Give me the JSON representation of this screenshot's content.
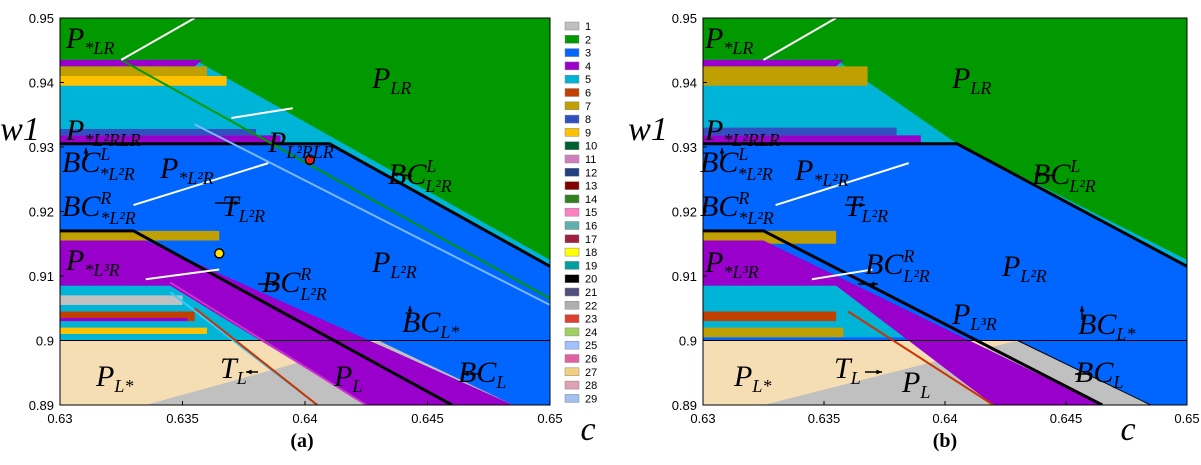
{
  "chart_data": [
    {
      "type": "region-map",
      "caption": "(a)",
      "xlabel": "c",
      "ylabel": "w1",
      "xlim": [
        0.63,
        0.65
      ],
      "ylim": [
        0.89,
        0.95
      ],
      "xticks": [
        0.63,
        0.635,
        0.64,
        0.645,
        0.65
      ],
      "yticks": [
        0.89,
        0.9,
        0.91,
        0.92,
        0.93,
        0.94,
        0.95
      ],
      "annotations": [
        {
          "main": "P",
          "sub": "*LR"
        },
        {
          "main": "P",
          "sub": "LR"
        },
        {
          "main": "P",
          "sub": "*L²RLR"
        },
        {
          "main": "P",
          "sub": "L²RLR"
        },
        {
          "main": "BC",
          "sup": "L",
          "sub": "*L²R"
        },
        {
          "main": "P",
          "sub": "*L²R"
        },
        {
          "main": "BC",
          "sup": "L",
          "sub": "L²R"
        },
        {
          "main": "T",
          "sub": "L²R"
        },
        {
          "main": "BC",
          "sup": "R",
          "sub": "*L²R"
        },
        {
          "main": "P",
          "sub": "*L³R"
        },
        {
          "main": "P",
          "sub": "L²R"
        },
        {
          "main": "BC",
          "sup": "R",
          "sub": "L²R"
        },
        {
          "main": "BC",
          "sub": "L*"
        },
        {
          "main": "P",
          "sub": "L*"
        },
        {
          "main": "T",
          "sub": "L"
        },
        {
          "main": "P",
          "sub": "L"
        },
        {
          "main": "BC",
          "sub": "L"
        }
      ],
      "legend": [
        {
          "name": "1",
          "color": "#c0c0c0"
        },
        {
          "name": "2",
          "color": "#009900"
        },
        {
          "name": "3",
          "color": "#0066ff"
        },
        {
          "name": "4",
          "color": "#9900cc"
        },
        {
          "name": "5",
          "color": "#00b4d8"
        },
        {
          "name": "6",
          "color": "#c04000"
        },
        {
          "name": "7",
          "color": "#c0a000"
        },
        {
          "name": "8",
          "color": "#3050c0"
        },
        {
          "name": "9",
          "color": "#ffc000"
        },
        {
          "name": "10",
          "color": "#006030"
        },
        {
          "name": "11",
          "color": "#d080c0"
        },
        {
          "name": "12",
          "color": "#204080"
        },
        {
          "name": "13",
          "color": "#800000"
        },
        {
          "name": "14",
          "color": "#308020"
        },
        {
          "name": "15",
          "color": "#ff80c0"
        },
        {
          "name": "16",
          "color": "#60b0b0"
        },
        {
          "name": "17",
          "color": "#a02040"
        },
        {
          "name": "18",
          "color": "#ffff00"
        },
        {
          "name": "19",
          "color": "#00a0a0"
        },
        {
          "name": "20",
          "color": "#000000"
        },
        {
          "name": "21",
          "color": "#505080"
        },
        {
          "name": "22",
          "color": "#b0b0b0"
        },
        {
          "name": "23",
          "color": "#e04030"
        },
        {
          "name": "24",
          "color": "#a0d060"
        },
        {
          "name": "25",
          "color": "#a0c0ff"
        },
        {
          "name": "26",
          "color": "#e060a0"
        },
        {
          "name": "27",
          "color": "#f0d080"
        },
        {
          "name": "28",
          "color": "#e0a0b0"
        },
        {
          "name": "29",
          "color": "#a0c0f0"
        }
      ]
    },
    {
      "type": "region-map",
      "caption": "(b)",
      "xlabel": "c",
      "ylabel": "w1",
      "xlim": [
        0.63,
        0.65
      ],
      "ylim": [
        0.89,
        0.95
      ],
      "xticks": [
        0.63,
        0.635,
        0.64,
        0.645,
        0.65
      ],
      "yticks": [
        0.89,
        0.9,
        0.91,
        0.92,
        0.93,
        0.94,
        0.95
      ],
      "annotations": [
        {
          "main": "P",
          "sub": "*LR"
        },
        {
          "main": "P",
          "sub": "LR"
        },
        {
          "main": "P",
          "sub": "*L²RLR"
        },
        {
          "main": "BC",
          "sup": "L",
          "sub": "*L²R"
        },
        {
          "main": "P",
          "sub": "*L²R"
        },
        {
          "main": "BC",
          "sup": "L",
          "sub": "L²R"
        },
        {
          "main": "T",
          "sub": "L²R"
        },
        {
          "main": "BC",
          "sup": "R",
          "sub": "*L²R"
        },
        {
          "main": "P",
          "sub": "*L³R"
        },
        {
          "main": "BC",
          "sup": "R",
          "sub": "L²R"
        },
        {
          "main": "P",
          "sub": "L²R"
        },
        {
          "main": "P",
          "sub": "L³R"
        },
        {
          "main": "BC",
          "sub": "L*"
        },
        {
          "main": "P",
          "sub": "L*"
        },
        {
          "main": "T",
          "sub": "L"
        },
        {
          "main": "P",
          "sub": "L"
        },
        {
          "main": "BC",
          "sub": "L"
        }
      ]
    }
  ]
}
